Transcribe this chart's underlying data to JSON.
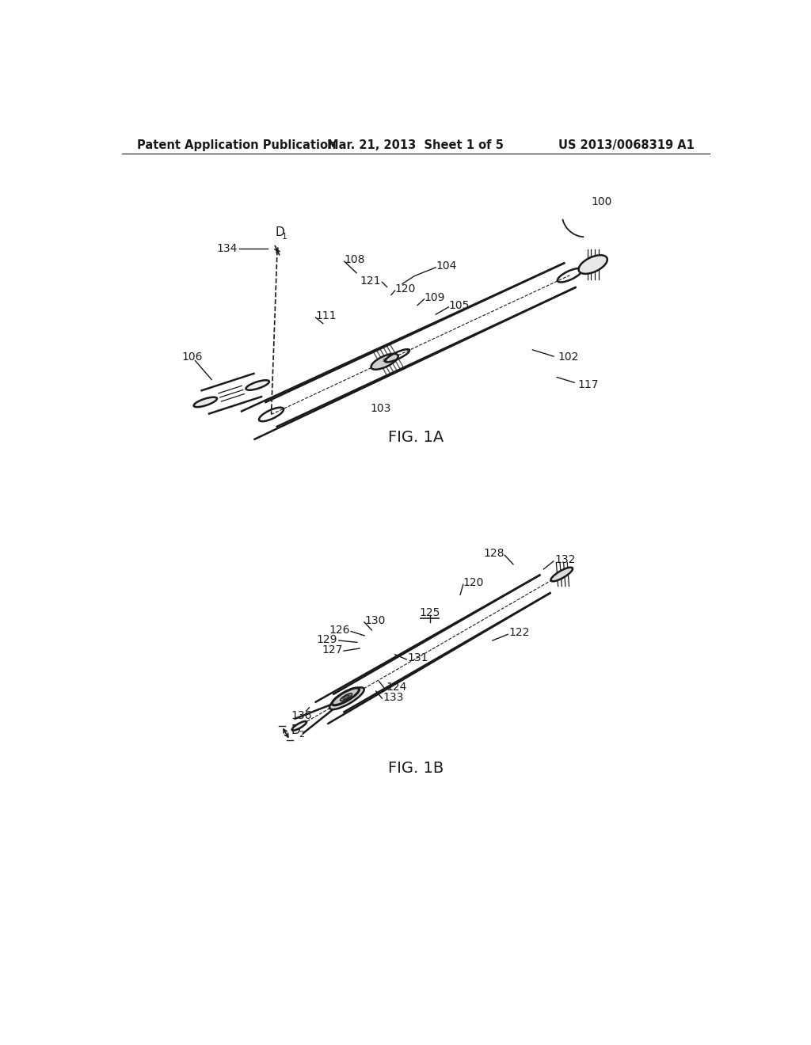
{
  "bg_color": "#ffffff",
  "line_color": "#1a1a1a",
  "header_left": "Patent Application Publication",
  "header_center": "Mar. 21, 2013  Sheet 1 of 5",
  "header_right": "US 2013/0068319 A1",
  "fig1a_label": "FIG. 1A",
  "fig1b_label": "FIG. 1B"
}
